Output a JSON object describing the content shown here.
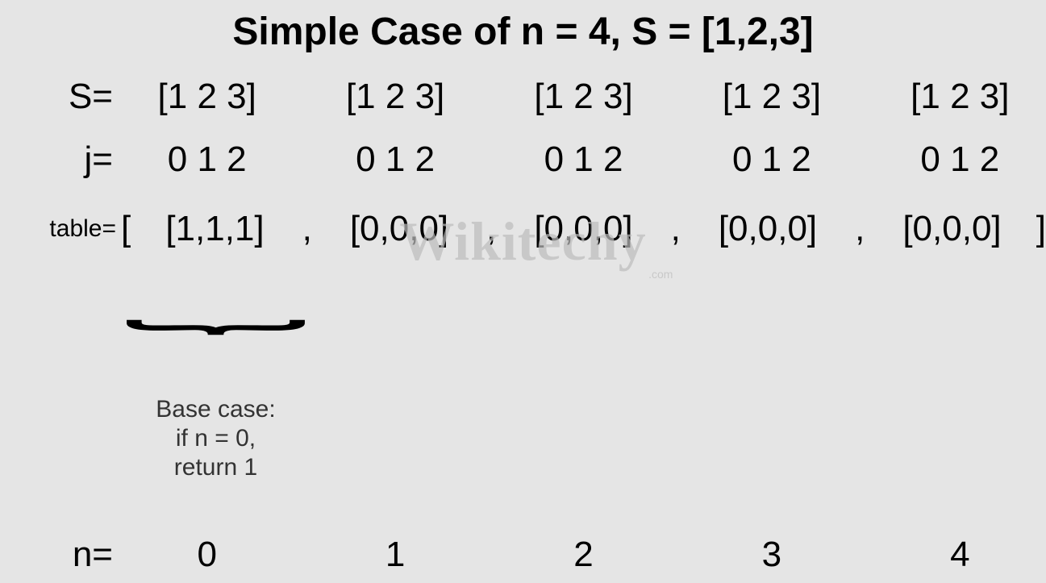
{
  "title": "Simple Case of n = 4, S = [1,2,3]",
  "labels": {
    "S": "S=",
    "j": "j=",
    "table": "table=",
    "n": "n="
  },
  "S_columns": [
    "[1 2 3]",
    "[1 2 3]",
    "[1 2 3]",
    "[1 2 3]",
    "[1 2 3]"
  ],
  "j_columns": [
    "0 1 2",
    "0 1 2",
    "0 1 2",
    "0 1 2",
    "0 1 2"
  ],
  "table": {
    "open": "[",
    "close": "]",
    "cells": [
      "[1,1,1]",
      "[0,0,0]",
      "[0,0,0]",
      "[0,0,0]",
      "[0,0,0]"
    ],
    "separator": ","
  },
  "base_case": {
    "line1": "Base case:",
    "line2": "if n = 0,",
    "line3": "return 1"
  },
  "n_columns": [
    "0",
    "1",
    "2",
    "3",
    "4"
  ],
  "watermark": "Wikitechy",
  "watermark_sub": ".com",
  "colors": {
    "background": "#e5e5e5",
    "text": "#000000",
    "watermark": "#bdbdbd",
    "base_case_text": "#333333"
  },
  "fonts": {
    "title_size": 48,
    "row_size": 44,
    "small_size": 30,
    "brace_size": 90
  }
}
